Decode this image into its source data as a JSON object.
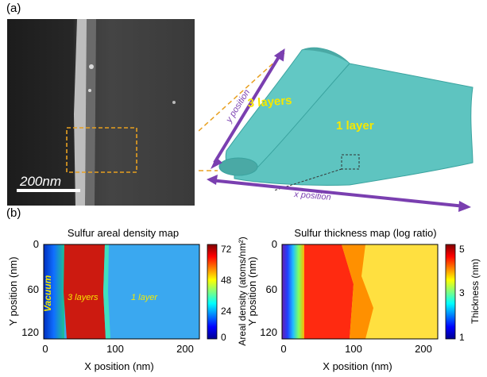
{
  "panel_a": {
    "label": "(a)",
    "scale_bar_label": "200nm",
    "fold_labels": {
      "three_layers": "3 layers",
      "one_layer": "1 layer",
      "y_axis": "y position",
      "x_axis": "x position"
    }
  },
  "panel_b": {
    "label": "(b)",
    "maps": [
      {
        "title": "Sulfur areal density map",
        "xlabel": "X position (nm)",
        "ylabel": "Y position (nm)",
        "x_ticks": [
          "0",
          "100",
          "200"
        ],
        "y_ticks": [
          "0",
          "60",
          "120"
        ],
        "colorbar_label": "Areal density (atoms/nm²)",
        "colorbar_ticks": [
          "72",
          "48",
          "24",
          "0"
        ],
        "region_labels": [
          "Vacuum",
          "3 layers",
          "1 layer"
        ]
      },
      {
        "title": "Sulfur thickness map (log ratio)",
        "xlabel": "X position (nm)",
        "ylabel": "Y position (nm)",
        "x_ticks": [
          "0",
          "100",
          "200"
        ],
        "y_ticks": [
          "0",
          "60",
          "120"
        ],
        "colorbar_label": "Thickness (nm)",
        "colorbar_ticks": [
          "5",
          "3",
          "1"
        ]
      }
    ]
  },
  "colors": {
    "sheet": "#5ec4c0",
    "arrow": "#7a3fb0",
    "highlight_text": "#f5e800",
    "dashed_box": "#e8a020"
  }
}
